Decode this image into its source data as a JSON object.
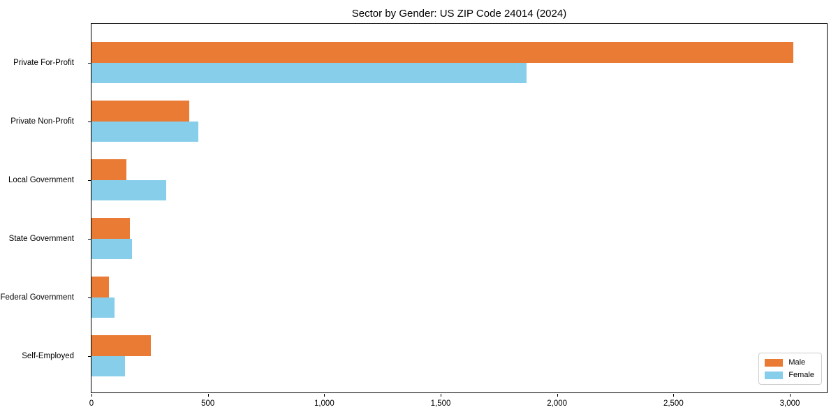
{
  "chart_data": {
    "type": "bar",
    "orientation": "horizontal",
    "title": "Sector by Gender: US ZIP Code 24014 (2024)",
    "categories": [
      "Private For-Profit",
      "Private Non-Profit",
      "Local Government",
      "State Government",
      "Federal Government",
      "Self-Employed"
    ],
    "series": [
      {
        "name": "Male",
        "color": "#E97B35",
        "values": [
          3015,
          420,
          150,
          165,
          75,
          255
        ]
      },
      {
        "name": "Female",
        "color": "#87CEEB",
        "values": [
          1870,
          460,
          320,
          175,
          100,
          145
        ]
      }
    ],
    "xlabel": "",
    "ylabel": "",
    "xlim": [
      0,
      3165
    ],
    "xticks": [
      0,
      500,
      1000,
      1500,
      2000,
      2500,
      3000
    ],
    "xtick_labels": [
      "0",
      "500",
      "1,000",
      "1,500",
      "2,000",
      "2,500",
      "3,000"
    ],
    "grid": false,
    "legend_position": "lower right"
  }
}
